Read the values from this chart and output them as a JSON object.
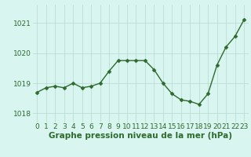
{
  "x": [
    0,
    1,
    2,
    3,
    4,
    5,
    6,
    7,
    8,
    9,
    10,
    11,
    12,
    13,
    14,
    15,
    16,
    17,
    18,
    19,
    20,
    21,
    22,
    23
  ],
  "y": [
    1018.7,
    1018.85,
    1018.9,
    1018.85,
    1019.0,
    1018.85,
    1018.9,
    1019.0,
    1019.4,
    1019.75,
    1019.75,
    1019.75,
    1019.75,
    1019.45,
    1019.0,
    1018.65,
    1018.45,
    1018.4,
    1018.3,
    1018.65,
    1019.6,
    1020.2,
    1020.55,
    1021.1
  ],
  "line_color": "#2d6a2d",
  "marker": "D",
  "marker_size": 2.5,
  "line_width": 1.0,
  "bg_color": "#d8f5f0",
  "grid_color": "#b8d8d0",
  "xlabel": "Graphe pression niveau de la mer (hPa)",
  "xlabel_color": "#2d6a2d",
  "xlabel_fontsize": 7.5,
  "ytick_color": "#2d6a2d",
  "xtick_color": "#2d6a2d",
  "yticks": [
    1018,
    1019,
    1020,
    1021
  ],
  "ylim": [
    1017.7,
    1021.6
  ],
  "xlim": [
    -0.5,
    23.5
  ],
  "tick_fontsize": 6.5
}
